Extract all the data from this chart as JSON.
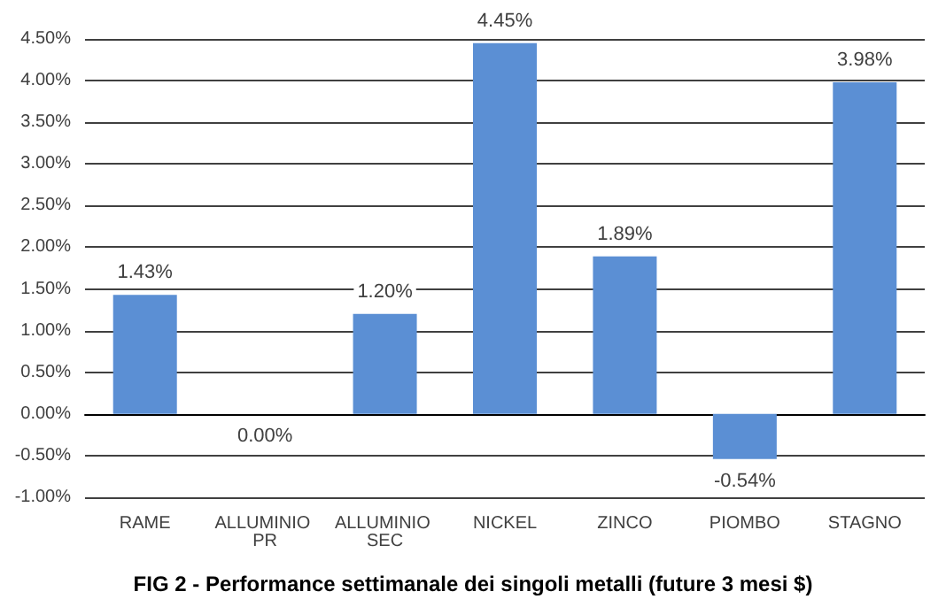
{
  "chart_data": {
    "type": "bar",
    "title": "FIG 2 - Performance settimanale dei singoli metalli (future 3 mesi $)",
    "categories": [
      "RAME",
      "ALLUMINIO PR",
      "ALLUMINIO SEC",
      "NICKEL",
      "ZINCO",
      "PIOMBO",
      "STAGNO"
    ],
    "values": [
      1.43,
      0.0,
      1.2,
      4.45,
      1.89,
      -0.54,
      3.98
    ],
    "value_labels": [
      "1.43%",
      "0.00%",
      "1.20%",
      "4.45%",
      "1.89%",
      "-0.54%",
      "3.98%"
    ],
    "color": "#5b8fd4",
    "ylim": [
      -1,
      4.5
    ],
    "yticks": [
      {
        "value": -1,
        "label": "-1.00%"
      },
      {
        "value": -0.5,
        "label": "-0.50%"
      },
      {
        "value": 0,
        "label": "0.00%"
      },
      {
        "value": 0.5,
        "label": "0.50%"
      },
      {
        "value": 1,
        "label": "1.00%"
      },
      {
        "value": 1.5,
        "label": "1.50%"
      },
      {
        "value": 2,
        "label": "2.00%"
      },
      {
        "value": 2.5,
        "label": "2.50%"
      },
      {
        "value": 3,
        "label": "3.00%"
      },
      {
        "value": 3.5,
        "label": "3.50%"
      },
      {
        "value": 4,
        "label": "4.00%"
      },
      {
        "value": 4.5,
        "label": "4.50%"
      }
    ],
    "grid": "y"
  }
}
